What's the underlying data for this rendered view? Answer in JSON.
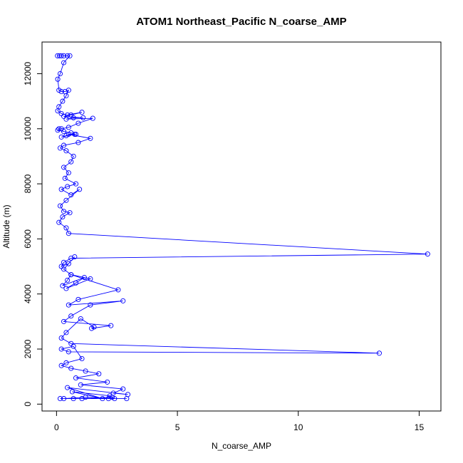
{
  "chart_data": {
    "type": "scatter",
    "title": "ATOM1 Northeast_Pacific N_coarse_AMP",
    "xlabel": "N_coarse_AMP",
    "ylabel": "Altitude (m)",
    "xlim": [
      -0.6,
      15.9
    ],
    "ylim": [
      -250,
      13150
    ],
    "xticks": [
      0,
      5,
      10,
      15
    ],
    "yticks": [
      0,
      2000,
      4000,
      6000,
      8000,
      10000,
      12000
    ],
    "grid": false,
    "legend": "none",
    "marker": "open-circle",
    "connected": true,
    "color": "#0000ff",
    "series": [
      {
        "x": [
          0.04,
          0.12,
          0.2,
          0.3,
          0.45,
          0.55,
          0.3,
          0.15,
          0.05,
          0.1,
          0.2,
          0.35,
          0.5,
          0.4,
          0.25,
          0.1,
          0.05,
          0.2,
          0.45,
          1.05,
          0.6,
          0.3,
          1.1,
          0.7,
          0.4,
          1.5,
          0.9,
          0.5,
          0.2,
          0.1,
          0.05,
          0.3,
          0.6,
          0.8,
          0.4,
          0.2,
          0.75,
          0.5,
          1.4,
          0.9,
          0.3,
          0.15,
          0.4,
          0.7,
          0.6,
          0.3,
          0.5,
          0.35,
          0.8,
          0.45,
          0.2,
          0.6,
          0.95,
          0.4,
          0.15,
          0.3,
          0.55,
          0.25,
          0.1,
          0.4,
          0.5,
          15.35,
          0.6,
          0.3,
          0.2,
          0.5,
          0.75,
          0.3,
          0.6,
          0.45,
          0.25,
          1.15,
          0.8,
          0.4,
          1.4,
          0.6,
          2.55,
          0.9,
          0.5,
          2.75,
          1.4,
          0.6,
          0.3,
          2.25,
          1.45,
          1.55,
          1.0,
          0.4,
          0.2,
          0.6,
          13.35,
          0.5,
          0.2,
          0.7,
          1.05,
          0.4,
          0.2,
          0.6,
          1.2,
          1.75,
          0.8,
          2.1,
          1.0,
          2.75,
          2.35,
          2.95,
          0.45,
          1.9,
          0.65,
          2.2,
          2.4,
          1.2,
          0.3,
          2.9,
          0.7,
          1.05,
          2.3,
          2.15,
          0.15
        ],
        "y": [
          12650,
          12650,
          12650,
          12650,
          12650,
          12650,
          12400,
          12000,
          11800,
          11400,
          11350,
          11350,
          11400,
          11200,
          11000,
          10800,
          10650,
          10550,
          10500,
          10600,
          10500,
          10450,
          10400,
          10400,
          10350,
          10380,
          10200,
          10050,
          10000,
          10000,
          9950,
          9900,
          9850,
          9800,
          9750,
          9700,
          9800,
          9800,
          9650,
          9500,
          9400,
          9300,
          9200,
          9000,
          8800,
          8600,
          8400,
          8200,
          8000,
          7900,
          7800,
          7600,
          7800,
          7400,
          7200,
          7000,
          6950,
          6800,
          6600,
          6400,
          6200,
          5450,
          5300,
          5150,
          5000,
          5100,
          5350,
          4900,
          4700,
          4500,
          4300,
          4600,
          4400,
          4200,
          4550,
          4700,
          4150,
          3800,
          3600,
          3750,
          3600,
          3200,
          3000,
          2850,
          2750,
          2800,
          3100,
          2600,
          2400,
          2200,
          1850,
          1900,
          2000,
          2100,
          1650,
          1500,
          1400,
          1300,
          1200,
          1100,
          950,
          800,
          700,
          550,
          400,
          350,
          600,
          200,
          450,
          300,
          200,
          250,
          200,
          200,
          200,
          200,
          250,
          200,
          200
        ]
      }
    ]
  }
}
